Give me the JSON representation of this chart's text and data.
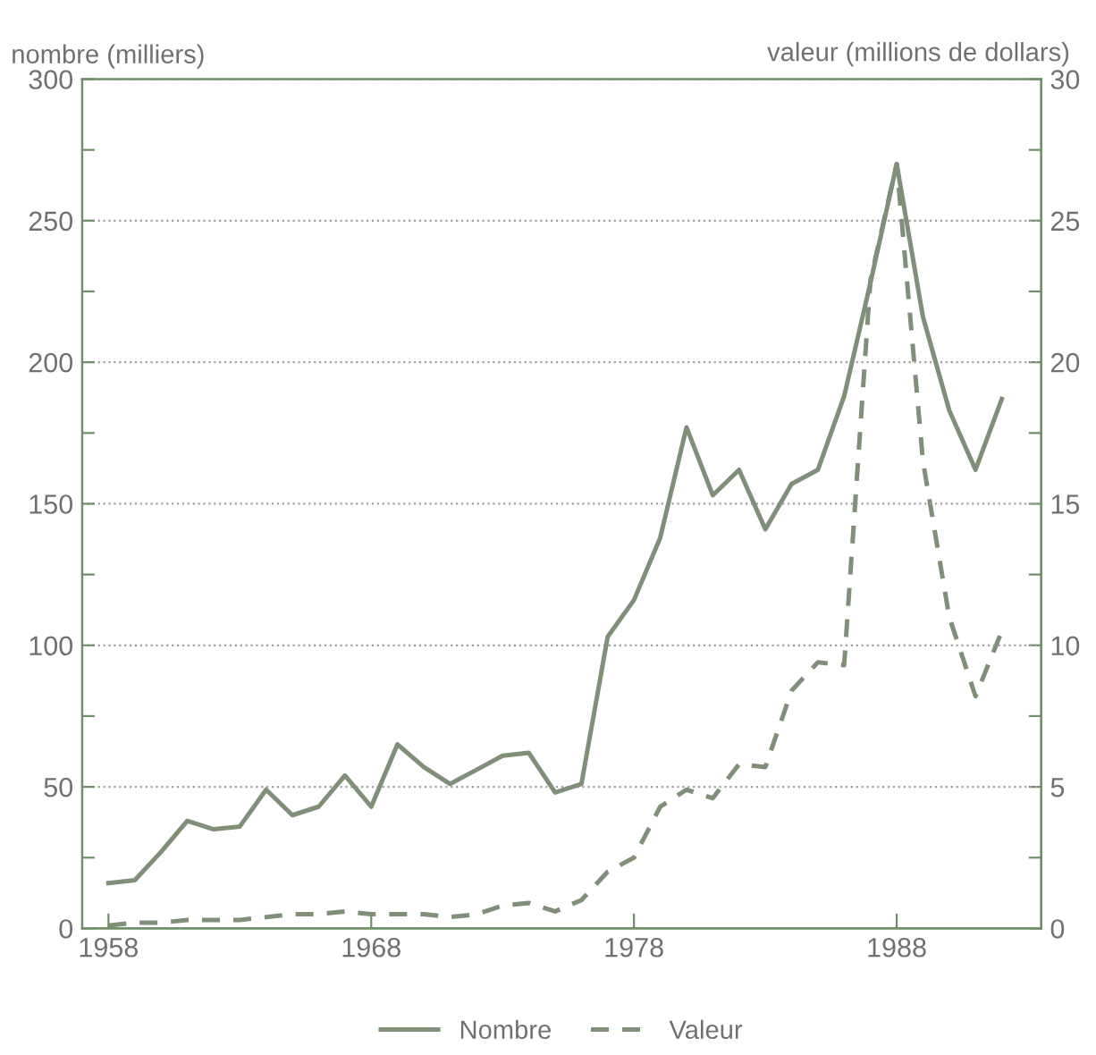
{
  "chart_data": {
    "type": "line",
    "ylabel": "nombre (milliers)",
    "y2label": "valeur (millions de dollars)",
    "x": [
      1958,
      1959,
      1960,
      1961,
      1962,
      1963,
      1964,
      1965,
      1966,
      1967,
      1968,
      1969,
      1970,
      1971,
      1972,
      1973,
      1974,
      1975,
      1976,
      1977,
      1978,
      1979,
      1980,
      1981,
      1982,
      1983,
      1984,
      1985,
      1986,
      1987,
      1988,
      1989,
      1990,
      1991,
      1992
    ],
    "series": [
      {
        "name": "Nombre",
        "color": "#7f8f78",
        "line_style": "solid",
        "values": [
          16,
          17,
          27,
          38,
          35,
          36,
          49,
          40,
          43,
          54,
          43,
          65,
          57,
          51,
          56,
          61,
          62,
          48,
          51,
          103,
          116,
          138,
          177,
          153,
          162,
          141,
          157,
          162,
          188,
          228,
          270,
          216,
          183,
          162,
          187
        ]
      },
      {
        "name": "Valeur",
        "color": "#7f8f78",
        "line_style": "dashed",
        "axis": "y2",
        "values": [
          0.1,
          0.2,
          0.2,
          0.3,
          0.3,
          0.3,
          0.4,
          0.5,
          0.5,
          0.6,
          0.5,
          0.5,
          0.5,
          0.4,
          0.5,
          0.8,
          0.9,
          0.6,
          1.0,
          2.0,
          2.5,
          4.3,
          4.9,
          4.6,
          5.8,
          5.7,
          8.4,
          9.4,
          9.3,
          22.9,
          27,
          16.5,
          11,
          8.2,
          10.5
        ]
      }
    ],
    "xlim": [
      1957,
      1993.5
    ],
    "xticks": [
      1958,
      1968,
      1978,
      1988
    ],
    "ylim": [
      0,
      300
    ],
    "yticks": [
      0,
      {
        "value": 25,
        "label": null
      },
      50,
      {
        "value": 75,
        "label": null
      },
      100,
      {
        "value": 125,
        "label": null
      },
      150,
      {
        "value": 175,
        "label": null
      },
      200,
      {
        "value": 225,
        "label": null
      },
      250,
      {
        "value": 275,
        "label": null
      },
      300
    ],
    "y2lim": [
      0,
      30
    ],
    "y2ticks": [
      0,
      {
        "value": 2.5,
        "label": null
      },
      5,
      {
        "value": 7.5,
        "label": null
      },
      10,
      {
        "value": 12.5,
        "label": null
      },
      15,
      {
        "value": 17.5,
        "label": null
      },
      20,
      {
        "value": 22.5,
        "label": null
      },
      25,
      {
        "value": 27.5,
        "label": null
      },
      30
    ],
    "grid": "y",
    "legend": "bottom"
  }
}
